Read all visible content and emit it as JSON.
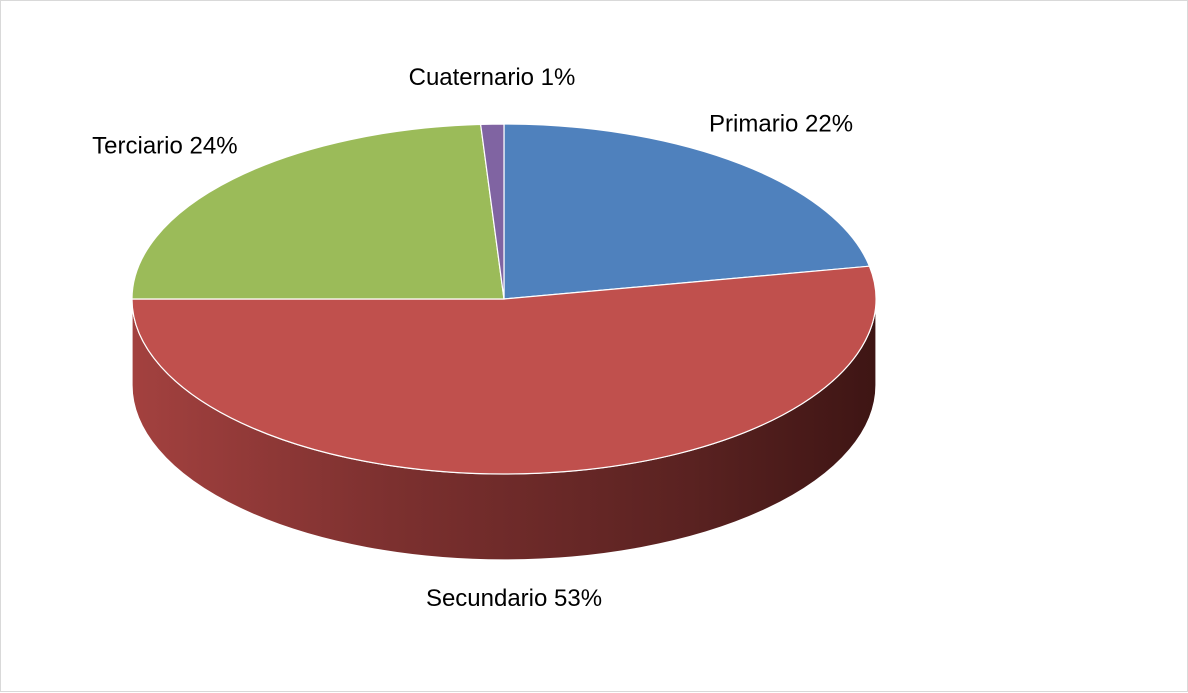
{
  "chart_data": {
    "type": "pie",
    "style": "3d",
    "title": "",
    "slices": [
      {
        "label": "Primario",
        "value": 22,
        "display": "Primario 22%",
        "color": "#4f81bd"
      },
      {
        "label": "Secundario",
        "value": 53,
        "display": "Secundario 53%",
        "color": "#c0504d"
      },
      {
        "label": "Terciario",
        "value": 24,
        "display": "Terciario 24%",
        "color": "#9bbb59"
      },
      {
        "label": "Cuaternario",
        "value": 1,
        "display": "Cuaternario 1%",
        "color": "#8064a2"
      }
    ],
    "legend": "none",
    "data_labels": "outside"
  }
}
